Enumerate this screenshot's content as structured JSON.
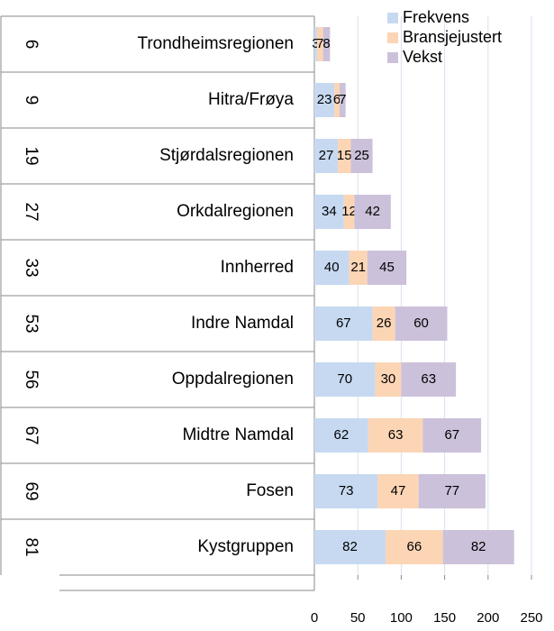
{
  "chart_data": {
    "type": "stacked-bar-horizontal",
    "ranks": [
      6,
      9,
      19,
      27,
      33,
      53,
      56,
      67,
      69,
      81
    ],
    "categories": [
      "Trondheimsregionen",
      "Hitra/Frøya",
      "Stjørdalsregionen",
      "Orkdalregionen",
      "Innherred",
      "Indre Namdal",
      "Oppdalregionen",
      "Midtre Namdal",
      "Fosen",
      "Kystgruppen"
    ],
    "series": [
      {
        "name": "Frekvens",
        "color": "#c6d9f1",
        "values": [
          3,
          23,
          27,
          34,
          40,
          67,
          70,
          62,
          73,
          82
        ]
      },
      {
        "name": "Bransjejustert",
        "color": "#fcd5b5",
        "values": [
          7,
          6,
          15,
          12,
          21,
          26,
          30,
          63,
          47,
          66
        ]
      },
      {
        "name": "Vekst",
        "color": "#ccc1da",
        "values": [
          8,
          7,
          25,
          42,
          45,
          60,
          63,
          67,
          77,
          82
        ]
      }
    ],
    "xlim": [
      0,
      250
    ],
    "xticks": [
      0,
      50,
      100,
      150,
      200,
      250
    ],
    "grid": true,
    "legend": "top-right"
  }
}
